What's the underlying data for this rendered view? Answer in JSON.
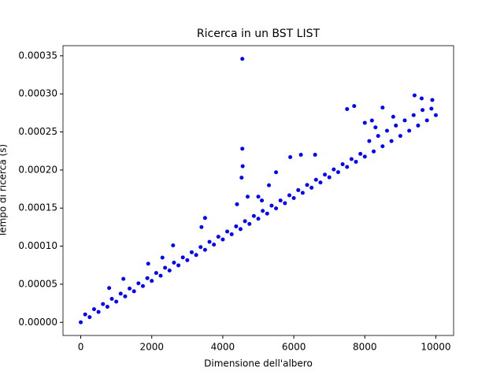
{
  "chart_data": {
    "type": "scatter",
    "title": "Ricerca in un BST LIST",
    "xlabel": "Dimensione dell'albero",
    "ylabel": "Tempo di ricerca (s)",
    "color": "#0000ff",
    "xlim": [
      -500,
      10500
    ],
    "ylim": [
      -1.73e-05,
      0.0003633
    ],
    "xticks": [
      0,
      2000,
      4000,
      6000,
      8000,
      10000
    ],
    "yticks": [
      {
        "value": 0,
        "label": "0.00000"
      },
      {
        "value": 5e-05,
        "label": "0.00005"
      },
      {
        "value": 0.0001,
        "label": "0.00010"
      },
      {
        "value": 0.00015,
        "label": "0.00015"
      },
      {
        "value": 0.0002,
        "label": "0.00020"
      },
      {
        "value": 0.00025,
        "label": "0.00025"
      },
      {
        "value": 0.0003,
        "label": "0.00030"
      },
      {
        "value": 0.00035,
        "label": "0.00035"
      }
    ],
    "x": [
      0,
      250,
      500,
      750,
      1000,
      1250,
      1500,
      1750,
      2000,
      2250,
      2500,
      2750,
      3000,
      3250,
      3500,
      3750,
      4000,
      4250,
      4500,
      4750,
      5000,
      5250,
      5500,
      5750,
      6000,
      6250,
      6500,
      6750,
      7000,
      7250,
      7500,
      7750,
      8000,
      8250,
      8500,
      8750,
      9000,
      9250,
      9500,
      9750,
      10000,
      125,
      375,
      625,
      875,
      1125,
      1375,
      1625,
      1875,
      2125,
      2375,
      2625,
      2875,
      3125,
      3375,
      3625,
      3875,
      4125,
      4375,
      4625,
      4875,
      5125,
      5375,
      5625,
      5875,
      6125,
      6375,
      6625,
      6875,
      7125,
      7375,
      7625,
      7875,
      8125,
      8375,
      8625,
      8875,
      9125,
      9375,
      9625,
      9875,
      4550,
      4550,
      4560,
      4530,
      4400,
      7500,
      7700,
      8000,
      8200,
      8300,
      8800,
      9400,
      9600,
      9900,
      6200,
      6600,
      5900,
      5500,
      5300,
      3500,
      3400,
      2600,
      2300,
      1900,
      1200,
      800,
      5000,
      5100,
      4700,
      8500
    ],
    "values": [
      0,
      6.8e-06,
      1.36e-05,
      2.04e-05,
      2.72e-05,
      3.4e-05,
      4.08e-05,
      4.76e-05,
      5.44e-05,
      6.12e-05,
      6.8e-05,
      7.48e-05,
      8.16e-05,
      8.84e-05,
      9.52e-05,
      0.000102,
      0.0001088,
      0.0001156,
      0.0001224,
      0.0001292,
      0.000136,
      0.0001428,
      0.0001496,
      0.0001564,
      0.0001632,
      0.00017,
      0.0001768,
      0.0001836,
      0.0001904,
      0.0001972,
      0.000204,
      0.0002108,
      0.0002176,
      0.0002244,
      0.0002312,
      0.000238,
      0.0002448,
      0.0002516,
      0.0002584,
      0.0002652,
      0.000272,
      1.04e-05,
      1.72e-05,
      2.4e-05,
      3.08e-05,
      3.76e-05,
      4.44e-05,
      5.12e-05,
      5.8e-05,
      6.48e-05,
      7.16e-05,
      7.84e-05,
      8.52e-05,
      9.2e-05,
      9.88e-05,
      0.0001056,
      0.0001124,
      0.0001192,
      0.000126,
      0.0001328,
      0.0001396,
      0.0001464,
      0.0001532,
      0.00016,
      0.0001668,
      0.0001736,
      0.0001804,
      0.0001872,
      0.000194,
      0.0002008,
      0.0002076,
      0.0002144,
      0.0002212,
      0.000238,
      0.0002448,
      0.0002516,
      0.0002584,
      0.0002652,
      0.000272,
      0.0002788,
      0.0002806,
      0.000346,
      0.000228,
      0.000205,
      0.00019,
      0.000155,
      0.00028,
      0.000284,
      0.000262,
      0.000265,
      0.000256,
      0.00027,
      0.000298,
      0.000294,
      0.000292,
      0.00022,
      0.00022,
      0.000217,
      0.000197,
      0.00018,
      0.000137,
      0.000125,
      0.000101,
      8.5e-05,
      7.7e-05,
      5.7e-05,
      4.5e-05,
      0.000165,
      0.00016,
      0.000165,
      0.000282
    ]
  }
}
